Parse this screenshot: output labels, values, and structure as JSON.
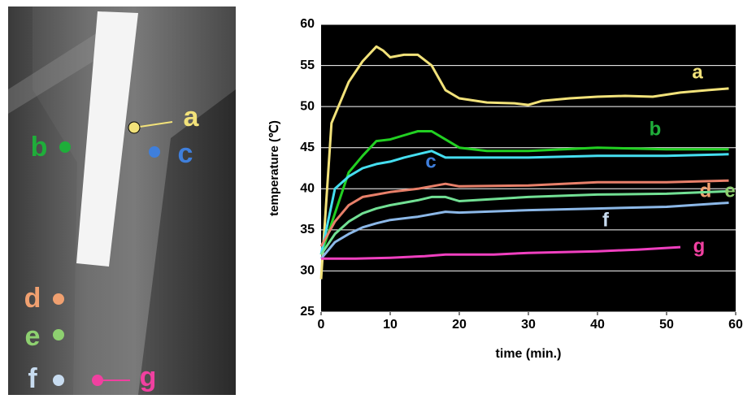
{
  "chart_data": {
    "type": "line",
    "xlabel": "time (min.)",
    "ylabel": "temperature (℃)",
    "xlim": [
      0,
      60
    ],
    "xticks": [
      0,
      10,
      20,
      30,
      40,
      50,
      60
    ],
    "ylim": [
      25,
      60
    ],
    "yticks": [
      25,
      30,
      35,
      40,
      45,
      50,
      55,
      60
    ],
    "grid": true,
    "background": "#000000",
    "grid_color": "#ffffff",
    "series": [
      {
        "name": "a",
        "color": "#f2e27a",
        "label_color": "#f2e27a",
        "x": [
          0,
          1.5,
          4,
          6,
          8,
          9,
          10,
          12,
          14,
          16,
          18,
          20,
          24,
          28,
          30,
          32,
          36,
          40,
          44,
          48,
          52,
          56,
          59
        ],
        "values": [
          29,
          48,
          53,
          55.5,
          57.3,
          56.8,
          56,
          56.3,
          56.3,
          55,
          52,
          51,
          50.5,
          50.4,
          50.2,
          50.7,
          51,
          51.2,
          51.3,
          51.2,
          51.7,
          52,
          52.2
        ]
      },
      {
        "name": "b",
        "color": "#22d022",
        "label_color": "#1fae3a",
        "x": [
          0,
          2,
          4,
          6,
          8,
          10,
          12,
          14,
          16,
          18,
          20,
          24,
          30,
          40,
          50,
          59
        ],
        "values": [
          32,
          37,
          42,
          44,
          45.8,
          46,
          46.5,
          47,
          47,
          46,
          45,
          44.6,
          44.6,
          45,
          44.8,
          44.8
        ]
      },
      {
        "name": "c",
        "color": "#45def0",
        "label_color": "#3f7fdc",
        "x": [
          0,
          2,
          4,
          6,
          8,
          10,
          12,
          14,
          16,
          18,
          20,
          30,
          40,
          50,
          59
        ],
        "values": [
          32,
          40,
          41.5,
          42.5,
          43,
          43.3,
          43.8,
          44.2,
          44.6,
          43.8,
          43.8,
          43.8,
          44,
          44,
          44.2
        ]
      },
      {
        "name": "d",
        "color": "#e8806a",
        "label_color": "#f0a070",
        "x": [
          0,
          2,
          4,
          6,
          8,
          10,
          14,
          18,
          20,
          30,
          40,
          50,
          59
        ],
        "values": [
          33,
          36,
          38,
          39,
          39.3,
          39.6,
          40,
          40.6,
          40.3,
          40.4,
          40.8,
          40.8,
          41
        ]
      },
      {
        "name": "e",
        "color": "#72e094",
        "label_color": "#8ed070",
        "x": [
          0,
          2,
          4,
          6,
          8,
          10,
          14,
          16,
          18,
          20,
          30,
          40,
          50,
          59
        ],
        "values": [
          32,
          34.5,
          36,
          37,
          37.6,
          38,
          38.6,
          39,
          39,
          38.5,
          39,
          39.3,
          39.4,
          39.7
        ]
      },
      {
        "name": "f",
        "color": "#8cb8e8",
        "label_color": "#c8dcf0",
        "x": [
          0,
          2,
          4,
          6,
          8,
          10,
          14,
          18,
          20,
          30,
          40,
          50,
          59
        ],
        "values": [
          31.5,
          33.5,
          34.5,
          35.3,
          35.8,
          36.2,
          36.6,
          37.2,
          37.1,
          37.4,
          37.6,
          37.8,
          38.3
        ]
      },
      {
        "name": "g",
        "color": "#f040c0",
        "label_color": "#f040a0",
        "x": [
          0,
          5,
          10,
          15,
          18,
          25,
          30,
          40,
          46,
          52
        ],
        "values": [
          31.5,
          31.5,
          31.6,
          31.8,
          32,
          32,
          32.2,
          32.4,
          32.6,
          32.9
        ]
      }
    ]
  }
}
